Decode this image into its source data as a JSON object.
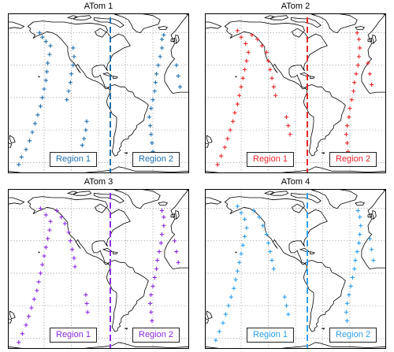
{
  "panels": [
    {
      "title": "ATom 1",
      "color": "#1f6fb0",
      "region_labels": [
        "Region 1",
        "Region 2"
      ],
      "track_deg": [
        [
          [
            -178,
            -62
          ],
          [
            -175,
            -55
          ],
          [
            -170,
            -48
          ],
          [
            -166,
            -40
          ],
          [
            -163,
            -32
          ],
          [
            -160,
            -24
          ],
          [
            -157,
            -16
          ],
          [
            -154,
            -8
          ],
          [
            -152,
            0
          ],
          [
            -150,
            8
          ],
          [
            -148,
            16
          ],
          [
            -147,
            24
          ],
          [
            -146,
            32
          ],
          [
            -144,
            40
          ],
          [
            -143,
            48
          ],
          [
            -148,
            52
          ],
          [
            -152,
            56
          ],
          [
            -155,
            60
          ]
        ],
        [
          [
            -125,
            -2
          ],
          [
            -123,
            6
          ],
          [
            -121,
            14
          ],
          [
            -120,
            22
          ],
          [
            -118,
            30
          ],
          [
            -117,
            38
          ],
          [
            -118,
            46
          ]
        ],
        [
          [
            -103,
            -22
          ],
          [
            -104,
            -30
          ],
          [
            -106,
            -38
          ],
          [
            -108,
            -44
          ]
        ],
        [
          [
            -30,
            -50
          ],
          [
            -31,
            -42
          ],
          [
            -32,
            -34
          ],
          [
            -33,
            -26
          ],
          [
            -34,
            -18
          ],
          [
            -32,
            -10
          ],
          [
            -30,
            -2
          ],
          [
            -28,
            6
          ],
          [
            -27,
            14
          ],
          [
            -26,
            22
          ],
          [
            -24,
            30
          ],
          [
            -22,
            38
          ],
          [
            -20,
            46
          ],
          [
            -20,
            54
          ],
          [
            -18,
            58
          ]
        ],
        [
          [
            0,
            10
          ],
          [
            -2,
            20
          ],
          [
            -4,
            30
          ]
        ]
      ]
    },
    {
      "title": "ATom 2",
      "color": "#e8262b",
      "region_labels": [
        "Region 1",
        "Region 2"
      ],
      "track_deg": [
        [
          [
            -176,
            -62
          ],
          [
            -172,
            -54
          ],
          [
            -168,
            -46
          ],
          [
            -165,
            -38
          ],
          [
            -162,
            -30
          ],
          [
            -159,
            -22
          ],
          [
            -157,
            -14
          ],
          [
            -154,
            -6
          ],
          [
            -152,
            2
          ],
          [
            -150,
            10
          ],
          [
            -148,
            18
          ],
          [
            -146,
            26
          ],
          [
            -144,
            34
          ],
          [
            -142,
            42
          ],
          [
            -145,
            50
          ],
          [
            -150,
            56
          ],
          [
            -154,
            62
          ]
        ],
        [
          [
            -138,
            58
          ],
          [
            -132,
            54
          ],
          [
            -127,
            48
          ],
          [
            -122,
            42
          ],
          [
            -120,
            34
          ],
          [
            -118,
            26
          ],
          [
            -116,
            18
          ],
          [
            -114,
            10
          ],
          [
            -112,
            2
          ]
        ],
        [
          [
            -100,
            -18
          ],
          [
            -98,
            -26
          ],
          [
            -96,
            -34
          ]
        ],
        [
          [
            -32,
            -58
          ],
          [
            -32,
            -50
          ],
          [
            -33,
            -42
          ],
          [
            -34,
            -34
          ],
          [
            -33,
            -26
          ],
          [
            -31,
            -18
          ],
          [
            -30,
            -10
          ],
          [
            -28,
            -2
          ],
          [
            -26,
            6
          ],
          [
            -25,
            14
          ],
          [
            -23,
            22
          ],
          [
            -21,
            30
          ],
          [
            -20,
            38
          ],
          [
            -19,
            46
          ],
          [
            -20,
            54
          ],
          [
            -22,
            60
          ]
        ],
        [
          [
            -6,
            12
          ],
          [
            -8,
            22
          ],
          [
            -10,
            32
          ]
        ]
      ]
    },
    {
      "title": "ATom 3",
      "color": "#8a2be2",
      "region_labels": [
        "Region 1",
        "Region 2"
      ],
      "track_deg": [
        [
          [
            -178,
            -64
          ],
          [
            -174,
            -56
          ],
          [
            -170,
            -48
          ],
          [
            -167,
            -40
          ],
          [
            -164,
            -32
          ],
          [
            -161,
            -24
          ],
          [
            -158,
            -16
          ],
          [
            -156,
            -8
          ],
          [
            -154,
            0
          ],
          [
            -152,
            8
          ],
          [
            -150,
            16
          ],
          [
            -148,
            24
          ],
          [
            -146,
            32
          ],
          [
            -144,
            40
          ],
          [
            -143,
            48
          ],
          [
            -148,
            54
          ],
          [
            -154,
            60
          ]
        ],
        [
          [
            -136,
            58
          ],
          [
            -131,
            52
          ],
          [
            -127,
            46
          ],
          [
            -123,
            38
          ],
          [
            -121,
            30
          ],
          [
            -119,
            22
          ],
          [
            -117,
            14
          ],
          [
            -116,
            6
          ]
        ],
        [
          [
            -104,
            -20
          ],
          [
            -103,
            -28
          ],
          [
            -102,
            -36
          ]
        ],
        [
          [
            -30,
            -60
          ],
          [
            -30,
            -52
          ],
          [
            -31,
            -44
          ],
          [
            -32,
            -36
          ],
          [
            -33,
            -28
          ],
          [
            -32,
            -20
          ],
          [
            -30,
            -12
          ],
          [
            -28,
            -4
          ],
          [
            -26,
            4
          ],
          [
            -25,
            12
          ],
          [
            -23,
            20
          ],
          [
            -21,
            28
          ],
          [
            -20,
            36
          ],
          [
            -18,
            44
          ],
          [
            -18,
            52
          ],
          [
            -20,
            58
          ]
        ],
        [
          [
            -2,
            10
          ],
          [
            -4,
            20
          ],
          [
            -6,
            30
          ]
        ]
      ]
    },
    {
      "title": "ATom 4",
      "color": "#2e9ef2",
      "region_labels": [
        "Region 1",
        "Region 2"
      ],
      "track_deg": [
        [
          [
            -178,
            -62
          ],
          [
            -174,
            -54
          ],
          [
            -170,
            -46
          ],
          [
            -167,
            -38
          ],
          [
            -164,
            -30
          ],
          [
            -161,
            -22
          ],
          [
            -158,
            -14
          ],
          [
            -156,
            -6
          ],
          [
            -154,
            2
          ],
          [
            -152,
            10
          ],
          [
            -150,
            18
          ],
          [
            -148,
            26
          ],
          [
            -146,
            34
          ],
          [
            -144,
            42
          ],
          [
            -146,
            50
          ],
          [
            -150,
            56
          ],
          [
            -154,
            62
          ]
        ],
        [
          [
            -136,
            58
          ],
          [
            -130,
            52
          ],
          [
            -126,
            44
          ],
          [
            -122,
            36
          ],
          [
            -120,
            28
          ],
          [
            -118,
            20
          ],
          [
            -116,
            12
          ],
          [
            -114,
            4
          ]
        ],
        [
          [
            -102,
            -22
          ],
          [
            -100,
            -30
          ],
          [
            -98,
            -38
          ]
        ],
        [
          [
            -34,
            -60
          ],
          [
            -33,
            -52
          ],
          [
            -33,
            -44
          ],
          [
            -34,
            -36
          ],
          [
            -33,
            -28
          ],
          [
            -31,
            -20
          ],
          [
            -29,
            -12
          ],
          [
            -27,
            -4
          ],
          [
            -25,
            4
          ],
          [
            -24,
            12
          ],
          [
            -22,
            20
          ],
          [
            -20,
            28
          ],
          [
            -19,
            36
          ],
          [
            -18,
            44
          ],
          [
            -19,
            52
          ],
          [
            -21,
            58
          ]
        ],
        [
          [
            -4,
            12
          ],
          [
            -6,
            22
          ],
          [
            -8,
            32
          ]
        ]
      ]
    }
  ]
}
